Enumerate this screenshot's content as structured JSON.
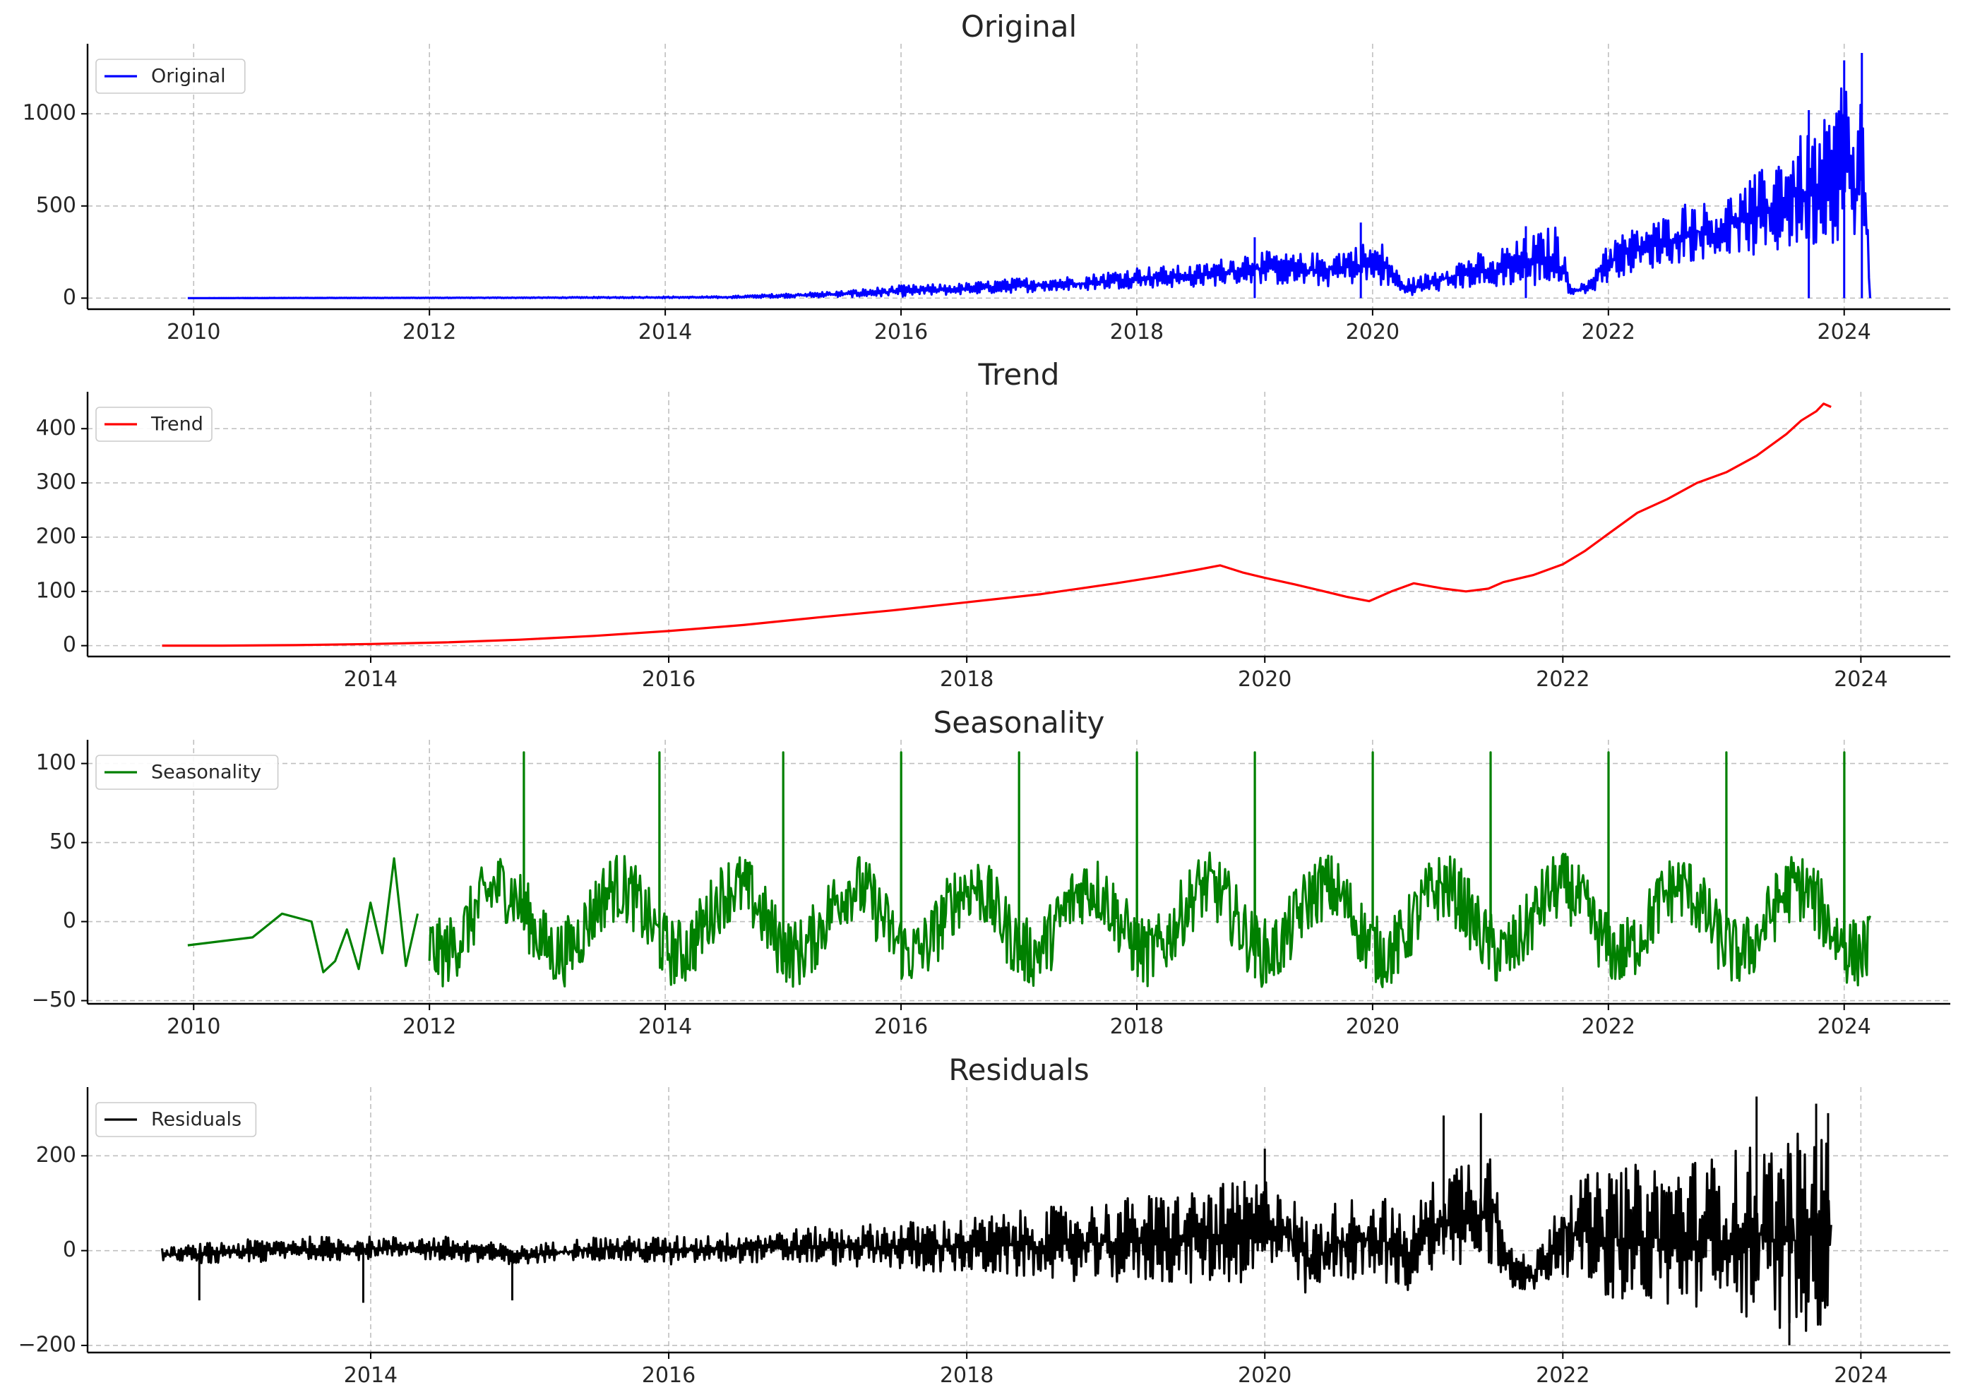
{
  "chart_data": [
    {
      "type": "line",
      "title": "Original",
      "legend_location": "upper-left",
      "grid": true,
      "color": "#0000ff",
      "xlim": [
        2009.1,
        2024.9
      ],
      "ylim": [
        -60,
        1380
      ],
      "yticks": [
        0,
        500,
        1000
      ],
      "xticks": [
        2010,
        2012,
        2014,
        2016,
        2018,
        2020,
        2022,
        2024
      ],
      "series": [
        {
          "name": "Original",
          "noise": "envelope",
          "x": [
            2009.95,
            2011.0,
            2012.0,
            2013.0,
            2013.8,
            2014.5,
            2015.0,
            2015.5,
            2016.0,
            2016.5,
            2017.0,
            2017.5,
            2018.0,
            2018.5,
            2019.0,
            2019.3,
            2019.6,
            2019.9,
            2020.1,
            2020.25,
            2020.4,
            2020.6,
            2020.9,
            2021.0,
            2021.1,
            2021.3,
            2021.55,
            2021.6,
            2021.7,
            2021.85,
            2021.95,
            2022.1,
            2022.3,
            2022.5,
            2022.7,
            2022.9,
            2023.1,
            2023.3,
            2023.5,
            2023.7,
            2023.9,
            2024.0,
            2024.1,
            2024.15,
            2024.2,
            2024.22
          ],
          "lower": [
            0,
            0,
            0,
            0,
            0,
            0,
            2,
            5,
            8,
            20,
            30,
            40,
            55,
            60,
            80,
            70,
            60,
            80,
            60,
            20,
            15,
            40,
            60,
            40,
            70,
            60,
            60,
            30,
            20,
            30,
            60,
            120,
            150,
            180,
            200,
            220,
            250,
            200,
            250,
            270,
            300,
            300,
            350,
            300,
            100,
            0
          ],
          "upper": [
            0,
            2,
            3,
            5,
            8,
            10,
            25,
            40,
            70,
            80,
            110,
            120,
            170,
            180,
            260,
            240,
            250,
            300,
            300,
            100,
            120,
            180,
            250,
            200,
            280,
            330,
            400,
            300,
            60,
            100,
            300,
            350,
            400,
            450,
            550,
            500,
            600,
            700,
            850,
            900,
            1000,
            1280,
            800,
            1330,
            400,
            0
          ]
        }
      ],
      "spikes": [
        {
          "x": 2019.0,
          "y": 330
        },
        {
          "x": 2019.9,
          "y": 410
        },
        {
          "x": 2021.3,
          "y": 390
        },
        {
          "x": 2023.7,
          "y": 1020
        },
        {
          "x": 2024.0,
          "y": 1290
        },
        {
          "x": 2024.15,
          "y": 1330
        }
      ]
    },
    {
      "type": "line",
      "title": "Trend",
      "legend_location": "upper-left",
      "grid": true,
      "color": "#ff0000",
      "xlim": [
        2012.1,
        2024.6
      ],
      "ylim": [
        -20,
        468
      ],
      "yticks": [
        0,
        100,
        200,
        300,
        400
      ],
      "xticks": [
        2014,
        2016,
        2018,
        2020,
        2022,
        2024
      ],
      "series": [
        {
          "name": "Trend",
          "x": [
            2012.6,
            2013.0,
            2013.5,
            2014.0,
            2014.5,
            2015.0,
            2015.5,
            2016.0,
            2016.5,
            2017.0,
            2017.5,
            2018.0,
            2018.5,
            2019.0,
            2019.3,
            2019.55,
            2019.7,
            2019.85,
            2020.0,
            2020.2,
            2020.4,
            2020.55,
            2020.7,
            2020.85,
            2021.0,
            2021.2,
            2021.35,
            2021.5,
            2021.6,
            2021.8,
            2022.0,
            2022.15,
            2022.3,
            2022.5,
            2022.7,
            2022.9,
            2023.1,
            2023.3,
            2023.5,
            2023.6,
            2023.7,
            2023.75,
            2023.8
          ],
          "y": [
            0,
            0,
            1,
            3,
            6,
            11,
            18,
            27,
            38,
            52,
            65,
            80,
            95,
            115,
            128,
            140,
            148,
            135,
            125,
            113,
            100,
            90,
            82,
            100,
            115,
            105,
            100,
            105,
            117,
            130,
            150,
            175,
            205,
            245,
            270,
            300,
            320,
            350,
            390,
            415,
            432,
            446,
            440
          ]
        }
      ]
    },
    {
      "type": "line",
      "title": "Seasonality",
      "legend_location": "upper-left",
      "grid": true,
      "color": "#008000",
      "xlim": [
        2009.1,
        2024.9
      ],
      "ylim": [
        -52,
        115
      ],
      "yticks": [
        -50,
        0,
        50,
        100
      ],
      "xticks": [
        2010,
        2012,
        2014,
        2016,
        2018,
        2020,
        2022,
        2024
      ],
      "series": [
        {
          "name": "Seasonality",
          "x": [
            2009.95,
            2010.5,
            2010.75,
            2011.0,
            2011.1,
            2011.2,
            2011.3,
            2011.4,
            2011.5,
            2011.6,
            2011.7,
            2011.8,
            2011.9
          ],
          "y": [
            -15,
            -10,
            5,
            0,
            -32,
            -25,
            -5,
            -30,
            12,
            -20,
            40,
            -28,
            5
          ]
        }
      ],
      "pattern": {
        "start": 2012.0,
        "end": 2024.22,
        "annual_peak": 107,
        "peak_positions": [
          2012.8,
          2013.95,
          2015.0,
          2016.0,
          2017.0,
          2018.0,
          2019.0,
          2020.0,
          2021.0,
          2022.0,
          2023.0,
          2024.0
        ],
        "mean_min": -20,
        "mean_max": 22,
        "jitter": 22
      }
    },
    {
      "type": "line",
      "title": "Residuals",
      "legend_location": "upper-left",
      "grid": true,
      "color": "#000000",
      "xlim": [
        2012.1,
        2024.6
      ],
      "ylim": [
        -215,
        345
      ],
      "yticks": [
        -200,
        0,
        200
      ],
      "xticks": [
        2014,
        2016,
        2018,
        2020,
        2022,
        2024
      ],
      "series": [
        {
          "name": "Residuals",
          "noise": "envelope",
          "x": [
            2012.6,
            2013.0,
            2013.5,
            2014.0,
            2014.5,
            2015.0,
            2015.5,
            2016.0,
            2016.5,
            2017.0,
            2017.5,
            2018.0,
            2018.5,
            2019.0,
            2019.5,
            2019.9,
            2020.1,
            2020.3,
            2020.5,
            2020.8,
            2020.95,
            2021.1,
            2021.3,
            2021.55,
            2021.65,
            2021.8,
            2022.0,
            2022.3,
            2022.6,
            2023.0,
            2023.3,
            2023.6,
            2023.75,
            2023.8
          ],
          "lower": [
            -20,
            -30,
            -20,
            -20,
            -20,
            -30,
            -20,
            -30,
            -25,
            -30,
            -40,
            -50,
            -60,
            -70,
            -70,
            -70,
            -40,
            -110,
            -60,
            -70,
            -90,
            -40,
            -40,
            -60,
            -80,
            -90,
            -50,
            -100,
            -120,
            -130,
            -150,
            -180,
            -160,
            -90
          ],
          "upper": [
            5,
            20,
            30,
            30,
            30,
            10,
            30,
            30,
            40,
            50,
            60,
            70,
            90,
            110,
            130,
            150,
            160,
            60,
            110,
            120,
            60,
            140,
            200,
            240,
            10,
            -20,
            150,
            170,
            190,
            200,
            230,
            250,
            260,
            220
          ]
        }
      ],
      "spikes": [
        {
          "x": 2012.85,
          "y": -105
        },
        {
          "x": 2013.95,
          "y": -110
        },
        {
          "x": 2014.95,
          "y": -105
        },
        {
          "x": 2020.0,
          "y": 215
        },
        {
          "x": 2021.2,
          "y": 285
        },
        {
          "x": 2021.45,
          "y": 290
        },
        {
          "x": 2023.3,
          "y": 325
        },
        {
          "x": 2023.7,
          "y": 310
        },
        {
          "x": 2023.52,
          "y": -200
        },
        {
          "x": 2023.78,
          "y": 290
        }
      ]
    }
  ]
}
